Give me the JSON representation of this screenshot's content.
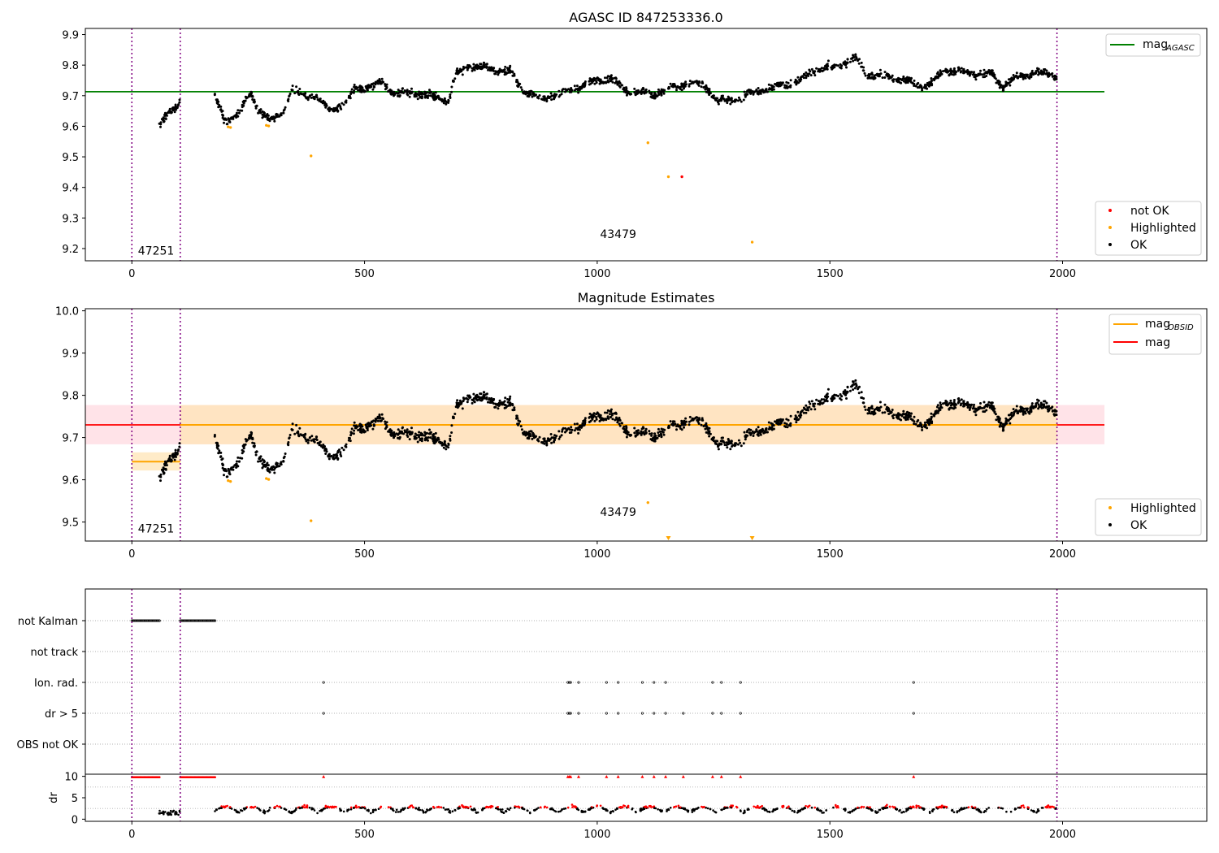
{
  "colors": {
    "ok": "#000000",
    "not_ok": "#ff0000",
    "highlighted": "#ffa500",
    "agasc_line": "#008000",
    "mag_line": "#ff0000",
    "mag_band": "#ffc0cb",
    "obsid_line": "#ffa500",
    "obsid_band": "#ffe4b5",
    "vline": "#800080",
    "grid": "#b0b0b0"
  },
  "chart_data": [
    {
      "type": "scatter",
      "title": "AGASC ID 847253336.0",
      "xlim": [
        -100,
        2310
      ],
      "ylim": [
        9.16,
        9.92
      ],
      "xticks": [
        0,
        500,
        1000,
        1500,
        2000
      ],
      "yticks": [
        9.2,
        9.3,
        9.4,
        9.5,
        9.6,
        9.7,
        9.8,
        9.9
      ],
      "legends": [
        {
          "position": "top-right",
          "entries": [
            {
              "label": "mag",
              "sub": "AGASC",
              "marker": "line",
              "color": "#008000"
            }
          ]
        },
        {
          "position": "bottom-right",
          "entries": [
            {
              "label": "not OK",
              "marker": "dot",
              "color": "#ff0000"
            },
            {
              "label": "Highlighted",
              "marker": "dot",
              "color": "#ffa500"
            },
            {
              "label": "OK",
              "marker": "dot",
              "color": "#000000"
            }
          ]
        }
      ],
      "hlines": [
        {
          "name": "mag_AGASC",
          "y": 9.713,
          "x_range": [
            -100,
            2090
          ],
          "color": "#008000"
        }
      ],
      "vlines": [
        0,
        104,
        1988
      ],
      "annotations": [
        {
          "text": "47251",
          "x": 52,
          "y": 9.18
        },
        {
          "text": "43479",
          "x": 1045,
          "y": 9.235
        }
      ],
      "highlighted_points": [
        [
          207,
          9.598
        ],
        [
          212,
          9.596
        ],
        [
          289,
          9.603
        ],
        [
          294,
          9.601
        ],
        [
          385,
          9.503
        ],
        [
          1109,
          9.546
        ],
        [
          1153,
          9.435
        ],
        [
          1333,
          9.221
        ]
      ],
      "not_ok_points": [
        [
          1182,
          9.435
        ]
      ]
    },
    {
      "type": "scatter",
      "title": "Magnitude Estimates",
      "xlim": [
        -100,
        2310
      ],
      "ylim": [
        9.455,
        10.005
      ],
      "xticks": [
        0,
        500,
        1000,
        1500,
        2000
      ],
      "yticks": [
        9.5,
        9.6,
        9.7,
        9.8,
        9.9,
        10.0
      ],
      "legends": [
        {
          "position": "top-right",
          "entries": [
            {
              "label": "mag",
              "sub": "OBSID",
              "marker": "line",
              "color": "#ffa500"
            },
            {
              "label": "mag",
              "marker": "line",
              "color": "#ff0000"
            }
          ]
        },
        {
          "position": "bottom-right",
          "entries": [
            {
              "label": "Highlighted",
              "marker": "dot",
              "color": "#ffa500"
            },
            {
              "label": "OK",
              "marker": "dot",
              "color": "#000000"
            }
          ]
        }
      ],
      "mag": {
        "value": 9.73,
        "band": [
          9.684,
          9.777
        ],
        "x_range": [
          -100,
          2090
        ]
      },
      "segments": [
        {
          "x_range": [
            0,
            104
          ],
          "value": 9.643,
          "band": [
            9.622,
            9.665
          ]
        },
        {
          "x_range": [
            104,
            1988
          ],
          "value": 9.73,
          "band": [
            9.684,
            9.777
          ]
        }
      ],
      "vlines": [
        0,
        104,
        1988
      ],
      "annotations": [
        {
          "text": "47251",
          "x": 52,
          "y": 9.475
        },
        {
          "text": "43479",
          "x": 1045,
          "y": 9.515
        }
      ],
      "highlighted_points": [
        [
          207,
          9.598
        ],
        [
          212,
          9.596
        ],
        [
          289,
          9.603
        ],
        [
          294,
          9.601
        ],
        [
          385,
          9.503
        ],
        [
          1109,
          9.546
        ]
      ],
      "out_of_range_markers": [
        1153,
        1333
      ]
    },
    {
      "type": "scatter",
      "xlim": [
        -100,
        2310
      ],
      "xticks": [
        0,
        500,
        1000,
        1500,
        2000
      ],
      "flag_rows": [
        "not Kalman",
        "not track",
        "Ion. rad.",
        "dr > 5",
        "OBS not OK"
      ],
      "flag_events": {
        "not Kalman": [
          [
            0,
            60
          ],
          [
            104,
            180
          ]
        ],
        "not track": [],
        "Ion. rad.": [
          412,
          937,
          940,
          943,
          960,
          1020,
          1045,
          1097,
          1122,
          1147,
          1248,
          1267,
          1308,
          1680
        ],
        "dr > 5": [
          412,
          937,
          940,
          943,
          960,
          1020,
          1045,
          1097,
          1122,
          1147,
          1185,
          1248,
          1267,
          1308,
          1680
        ],
        "OBS not OK": []
      },
      "dr_axis": {
        "label": "dr",
        "yticks": [
          0,
          5,
          10
        ],
        "ylim": [
          -0.5,
          10.5
        ]
      },
      "vlines": [
        0,
        104,
        1988
      ]
    }
  ]
}
